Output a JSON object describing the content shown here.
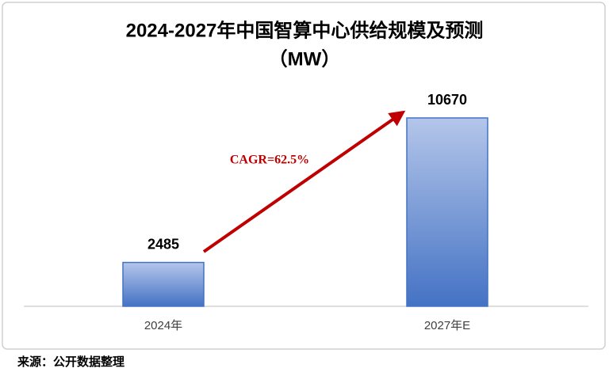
{
  "chart_data": {
    "type": "bar",
    "title": [
      "2024-2027年中国智算中心供给规模及预测",
      "（MW）"
    ],
    "categories": [
      "2024年",
      "2027年E"
    ],
    "values": [
      2485,
      10670
    ],
    "color": "#4472c4",
    "annotation": "CAGR=62.5%",
    "source": "来源：公开数据整理"
  }
}
